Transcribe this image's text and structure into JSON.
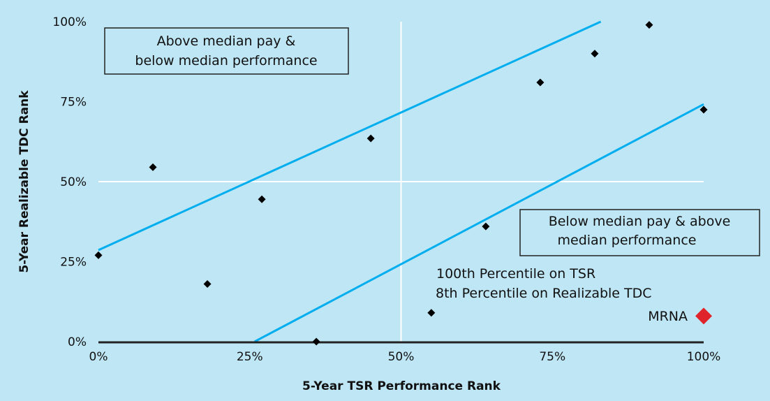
{
  "chart_data": {
    "type": "scatter",
    "xlabel": "5-Year TSR Performance Rank",
    "ylabel": "5-Year Realizable TDC Rank",
    "xlim": [
      0,
      100
    ],
    "ylim": [
      0,
      100
    ],
    "x_ticks": [
      "0%",
      "25%",
      "50%",
      "75%",
      "100%"
    ],
    "y_ticks": [
      "0%",
      "25%",
      "50%",
      "75%",
      "100%"
    ],
    "grid": "median lines at 50%",
    "peers": [
      {
        "x": 0,
        "y": 27
      },
      {
        "x": 9,
        "y": 54.5
      },
      {
        "x": 18,
        "y": 18
      },
      {
        "x": 27,
        "y": 44.5
      },
      {
        "x": 36,
        "y": 0
      },
      {
        "x": 45,
        "y": 63.5
      },
      {
        "x": 55,
        "y": 9
      },
      {
        "x": 64,
        "y": 36
      },
      {
        "x": 73,
        "y": 81
      },
      {
        "x": 82,
        "y": 90
      },
      {
        "x": 91,
        "y": 99
      },
      {
        "x": 100,
        "y": 72.5
      }
    ],
    "highlight": {
      "label": "MRNA",
      "x": 100,
      "y": 8,
      "color": "#e0242b"
    },
    "bands": [
      {
        "name": "upper",
        "from": [
          0,
          28.6
        ],
        "to": [
          83,
          100
        ]
      },
      {
        "name": "lower",
        "from": [
          25.8,
          0
        ],
        "to": [
          100,
          74.2
        ]
      }
    ],
    "band_color": "#00aeef",
    "annotations": {
      "upper_box": [
        "Above median pay &",
        "below median performance"
      ],
      "lower_box": [
        "Below median pay & above",
        "median performance"
      ],
      "mrna_note": [
        "100th Percentile on TSR",
        "8th Percentile on Realizable TDC"
      ]
    }
  }
}
